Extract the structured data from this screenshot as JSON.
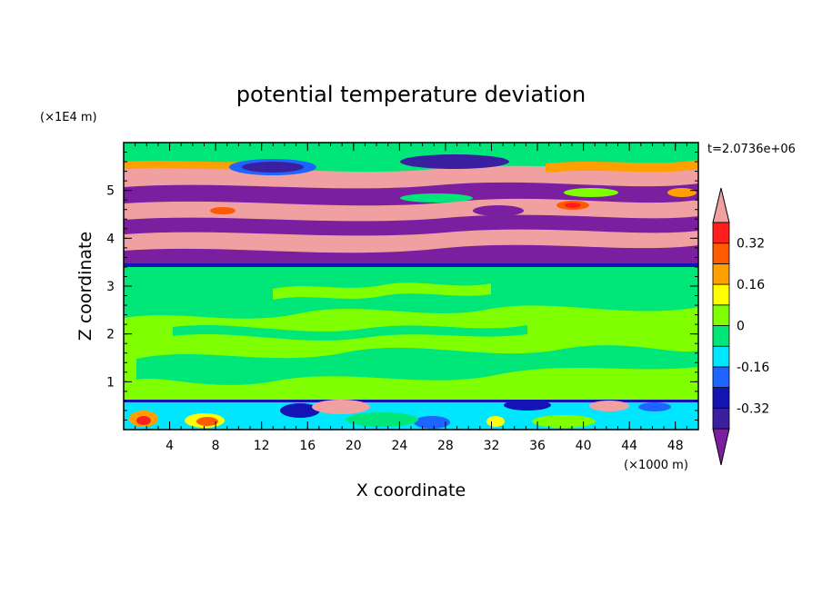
{
  "chart_data": {
    "type": "heatmap",
    "title": "potential temperature deviation",
    "xlabel": "X coordinate",
    "ylabel": "Z coordinate",
    "x_unit": "(×1000 m)",
    "y_unit": "(×1E4 m)",
    "time_label": "t=2.0736e+06",
    "xlim": [
      0,
      50
    ],
    "ylim": [
      0,
      6
    ],
    "x_ticks": [
      4,
      8,
      12,
      16,
      20,
      24,
      28,
      32,
      36,
      40,
      44,
      48
    ],
    "y_ticks": [
      1,
      2,
      3,
      4,
      5
    ],
    "colorbar": {
      "levels": [
        -0.4,
        -0.32,
        -0.24,
        -0.16,
        -0.08,
        0,
        0.08,
        0.16,
        0.24,
        0.32,
        0.4
      ],
      "labels": [
        "0.32",
        "0.16",
        "0",
        "-0.16",
        "-0.32"
      ],
      "label_values": [
        0.32,
        0.16,
        0,
        -0.16,
        -0.32
      ],
      "colors": [
        "#7a1fa0",
        "#3a1fa0",
        "#1414b4",
        "#1e64ff",
        "#00e6ff",
        "#00e678",
        "#7fff00",
        "#ffff00",
        "#ffa000",
        "#ff5a00",
        "#ff1e1e",
        "#f0a0a0"
      ]
    },
    "bands": [
      {
        "z": [
          0,
          0.6
        ],
        "value": -0.1,
        "note": "lower turbulent layer, mixed warm and cold patches"
      },
      {
        "z": [
          0.6,
          3.4
        ],
        "value": 0.04,
        "note": "near-neutral layer"
      },
      {
        "z": [
          3.4,
          5.9
        ],
        "value": 0.4,
        "note": "alternating warm and cold stripes"
      }
    ]
  }
}
